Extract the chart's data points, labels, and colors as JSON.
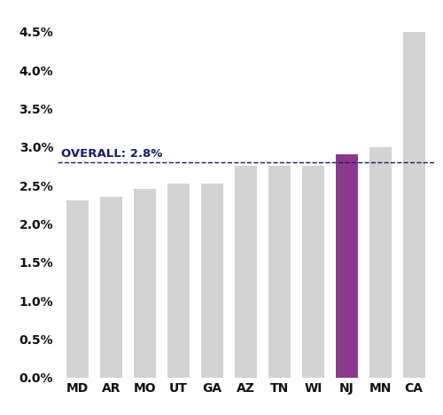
{
  "categories": [
    "MD",
    "AR",
    "MO",
    "UT",
    "GA",
    "AZ",
    "TN",
    "WI",
    "NJ",
    "MN",
    "CA"
  ],
  "values": [
    2.3,
    2.35,
    2.46,
    2.52,
    2.53,
    2.75,
    2.75,
    2.76,
    2.9,
    3.0,
    4.5
  ],
  "bar_colors": [
    "#d3d3d3",
    "#d3d3d3",
    "#d3d3d3",
    "#d3d3d3",
    "#d3d3d3",
    "#d3d3d3",
    "#d3d3d3",
    "#d3d3d3",
    "#8b3a8b",
    "#d3d3d3",
    "#d3d3d3"
  ],
  "overall_line": 2.8,
  "overall_label": "OVERALL: 2.8%",
  "overall_label_color": "#1a1a6e",
  "dashed_line_color": "#1a1a6e",
  "ylim": [
    0.0,
    4.75
  ],
  "yticks": [
    0.0,
    0.5,
    1.0,
    1.5,
    2.0,
    2.5,
    3.0,
    3.5,
    4.0,
    4.5
  ],
  "background_color": "#ffffff",
  "bar_width": 0.65,
  "overall_label_fontsize": 9.5,
  "tick_label_fontsize": 10,
  "tick_label_color": "#111111"
}
